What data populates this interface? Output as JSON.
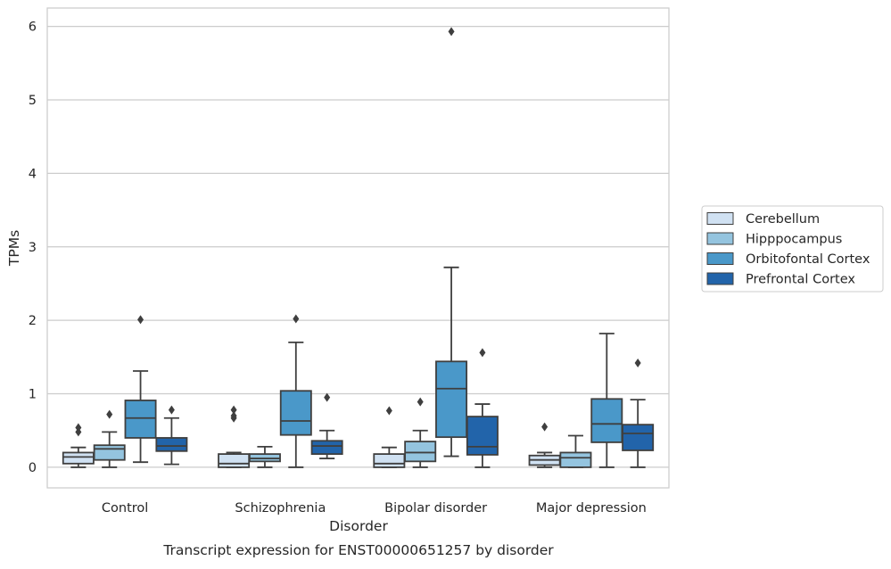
{
  "chart_data": {
    "type": "box",
    "title": "",
    "caption": "Transcript expression for ENST00000651257 by disorder",
    "xlabel": "Disorder",
    "ylabel": "TPMs",
    "ylim": [
      -0.28,
      6.25
    ],
    "yticks": [
      0,
      1,
      2,
      3,
      4,
      5,
      6
    ],
    "grid": "horizontal",
    "legend_position": "right",
    "categories": [
      "Control",
      "Schizophrenia",
      "Bipolar disorder",
      "Major depression"
    ],
    "series": [
      {
        "name": "Cerebellum",
        "color": "#d0e1f2",
        "boxes": [
          {
            "whislo": 0.0,
            "q1": 0.05,
            "med": 0.14,
            "q3": 0.2,
            "whishi": 0.27,
            "fliers": [
              0.48,
              0.54
            ]
          },
          {
            "whislo": 0.0,
            "q1": 0.0,
            "med": 0.05,
            "q3": 0.18,
            "whishi": 0.2,
            "fliers": [
              0.67,
              0.7,
              0.78
            ]
          },
          {
            "whislo": 0.0,
            "q1": 0.0,
            "med": 0.05,
            "q3": 0.18,
            "whishi": 0.27,
            "fliers": [
              0.77
            ]
          },
          {
            "whislo": 0.0,
            "q1": 0.03,
            "med": 0.1,
            "q3": 0.16,
            "whishi": 0.2,
            "fliers": [
              0.55
            ]
          }
        ]
      },
      {
        "name": "Hipppocampus",
        "color": "#94c4df",
        "boxes": [
          {
            "whislo": 0.0,
            "q1": 0.1,
            "med": 0.25,
            "q3": 0.3,
            "whishi": 0.48,
            "fliers": [
              0.72
            ]
          },
          {
            "whislo": 0.0,
            "q1": 0.08,
            "med": 0.12,
            "q3": 0.18,
            "whishi": 0.28,
            "fliers": []
          },
          {
            "whislo": 0.0,
            "q1": 0.08,
            "med": 0.2,
            "q3": 0.35,
            "whishi": 0.5,
            "fliers": [
              0.89
            ]
          },
          {
            "whislo": 0.0,
            "q1": 0.0,
            "med": 0.13,
            "q3": 0.2,
            "whishi": 0.43,
            "fliers": []
          }
        ]
      },
      {
        "name": "Orbitofontal Cortex",
        "color": "#4a98c9",
        "boxes": [
          {
            "whislo": 0.07,
            "q1": 0.4,
            "med": 0.67,
            "q3": 0.91,
            "whishi": 1.31,
            "fliers": [
              2.01
            ]
          },
          {
            "whislo": 0.0,
            "q1": 0.44,
            "med": 0.63,
            "q3": 1.04,
            "whishi": 1.7,
            "fliers": [
              2.02
            ]
          },
          {
            "whislo": 0.15,
            "q1": 0.41,
            "med": 1.07,
            "q3": 1.44,
            "whishi": 2.72,
            "fliers": [
              5.93
            ]
          },
          {
            "whislo": 0.0,
            "q1": 0.34,
            "med": 0.59,
            "q3": 0.93,
            "whishi": 1.82,
            "fliers": []
          }
        ]
      },
      {
        "name": "Prefrontal Cortex",
        "color": "#2264aa",
        "boxes": [
          {
            "whislo": 0.04,
            "q1": 0.22,
            "med": 0.29,
            "q3": 0.4,
            "whishi": 0.67,
            "fliers": [
              0.78
            ]
          },
          {
            "whislo": 0.12,
            "q1": 0.18,
            "med": 0.29,
            "q3": 0.36,
            "whishi": 0.5,
            "fliers": [
              0.95
            ]
          },
          {
            "whislo": 0.0,
            "q1": 0.17,
            "med": 0.28,
            "q3": 0.69,
            "whishi": 0.86,
            "fliers": [
              1.56
            ]
          },
          {
            "whislo": 0.0,
            "q1": 0.23,
            "med": 0.46,
            "q3": 0.58,
            "whishi": 0.92,
            "fliers": [
              1.42
            ]
          }
        ]
      }
    ]
  }
}
